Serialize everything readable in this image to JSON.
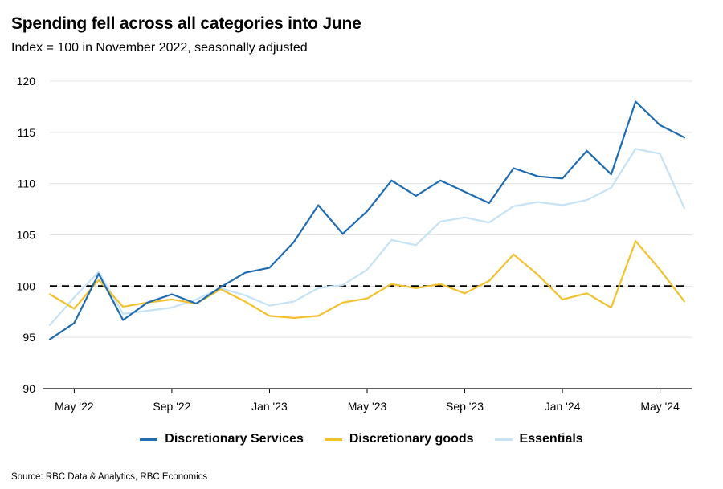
{
  "chart_data": {
    "type": "line",
    "title": "Spending fell across all categories into June",
    "subtitle": "Index = 100 in November 2022, seasonally adjusted",
    "source": "Source: RBC Data & Analytics, RBC Economics",
    "x": [
      "2022-04",
      "2022-05",
      "2022-06",
      "2022-07",
      "2022-08",
      "2022-09",
      "2022-10",
      "2022-11",
      "2022-12",
      "2023-01",
      "2023-02",
      "2023-03",
      "2023-04",
      "2023-05",
      "2023-06",
      "2023-07",
      "2023-08",
      "2023-09",
      "2023-10",
      "2023-11",
      "2023-12",
      "2024-01",
      "2024-02",
      "2024-03",
      "2024-04",
      "2024-05",
      "2024-06"
    ],
    "x_tick_labels": [
      {
        "x": "2022-05",
        "label": "May '22"
      },
      {
        "x": "2022-09",
        "label": "Sep '22"
      },
      {
        "x": "2023-01",
        "label": "Jan '23"
      },
      {
        "x": "2023-05",
        "label": "May '23"
      },
      {
        "x": "2023-09",
        "label": "Sep '23"
      },
      {
        "x": "2024-01",
        "label": "Jan '24"
      },
      {
        "x": "2024-05",
        "label": "May '24"
      }
    ],
    "ylim": [
      90,
      120
    ],
    "yticks": [
      90,
      95,
      100,
      105,
      110,
      115,
      120
    ],
    "reference_line": {
      "y": 100,
      "style": "dashed",
      "color": "#000000"
    },
    "legend_position": "bottom",
    "grid": "horizontal",
    "series": [
      {
        "name": "Discretionary Services",
        "color": "#1f6cb0",
        "values": [
          94.8,
          96.4,
          101.2,
          96.7,
          98.4,
          99.2,
          98.3,
          99.9,
          101.3,
          101.8,
          104.3,
          107.9,
          105.1,
          107.3,
          110.3,
          108.8,
          110.3,
          109.2,
          108.1,
          111.5,
          110.7,
          110.5,
          113.2,
          110.9,
          118.0,
          115.7,
          114.5
        ]
      },
      {
        "name": "Discretionary goods",
        "color": "#f2c12e",
        "values": [
          99.2,
          97.8,
          100.6,
          98.0,
          98.4,
          98.7,
          98.3,
          99.7,
          98.5,
          97.1,
          96.9,
          97.1,
          98.4,
          98.8,
          100.2,
          99.8,
          100.2,
          99.3,
          100.5,
          103.1,
          101.1,
          98.7,
          99.3,
          97.9,
          104.4,
          101.6,
          98.5
        ]
      },
      {
        "name": "Essentials",
        "color": "#c6e2f5",
        "values": [
          96.2,
          98.9,
          101.4,
          97.3,
          97.6,
          97.9,
          98.7,
          99.8,
          99.1,
          98.1,
          98.5,
          99.8,
          100.1,
          101.6,
          104.5,
          104.0,
          106.3,
          106.7,
          106.2,
          107.8,
          108.2,
          107.9,
          108.4,
          109.6,
          113.4,
          112.9,
          107.6
        ]
      }
    ]
  },
  "icons": {
    "legend_swatch": "line-swatch"
  }
}
